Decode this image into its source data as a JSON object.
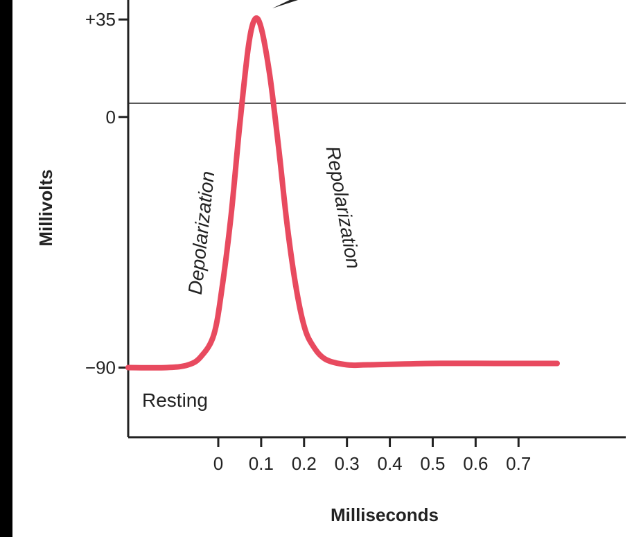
{
  "chart_data": {
    "type": "line",
    "xlabel": "Milliseconds",
    "ylabel": "Millivolts",
    "x_ticks": [
      "0",
      "0.1",
      "0.2",
      "0.3",
      "0.4",
      "0.5",
      "0.6",
      "0.7"
    ],
    "y_ticks": [
      {
        "label": "+35",
        "value": 35
      },
      {
        "label": "0",
        "value": 0
      },
      {
        "label": "−90",
        "value": -90
      }
    ],
    "series": [
      {
        "color": "#e84a5f",
        "x": [
          -0.21,
          -0.12,
          -0.07,
          -0.04,
          -0.01,
          0.01,
          0.03,
          0.05,
          0.07,
          0.085,
          0.1,
          0.12,
          0.14,
          0.16,
          0.18,
          0.2,
          0.22,
          0.25,
          0.3,
          0.35,
          0.5,
          0.65,
          0.79
        ],
        "values": [
          -90,
          -90,
          -89,
          -86,
          -78,
          -60,
          -35,
          -3,
          25,
          35,
          32,
          15,
          -10,
          -38,
          -60,
          -75,
          -82,
          -87,
          -89,
          -89,
          -88.5,
          -88.5,
          -88.5
        ]
      }
    ],
    "xlim": [
      -0.21,
      0.95
    ],
    "ylim": [
      -115,
      42
    ],
    "zero_reference_line": true,
    "annotations": [
      {
        "text": "Depolarization"
      },
      {
        "text": "Repolarization"
      },
      {
        "text": "Resting"
      }
    ]
  }
}
